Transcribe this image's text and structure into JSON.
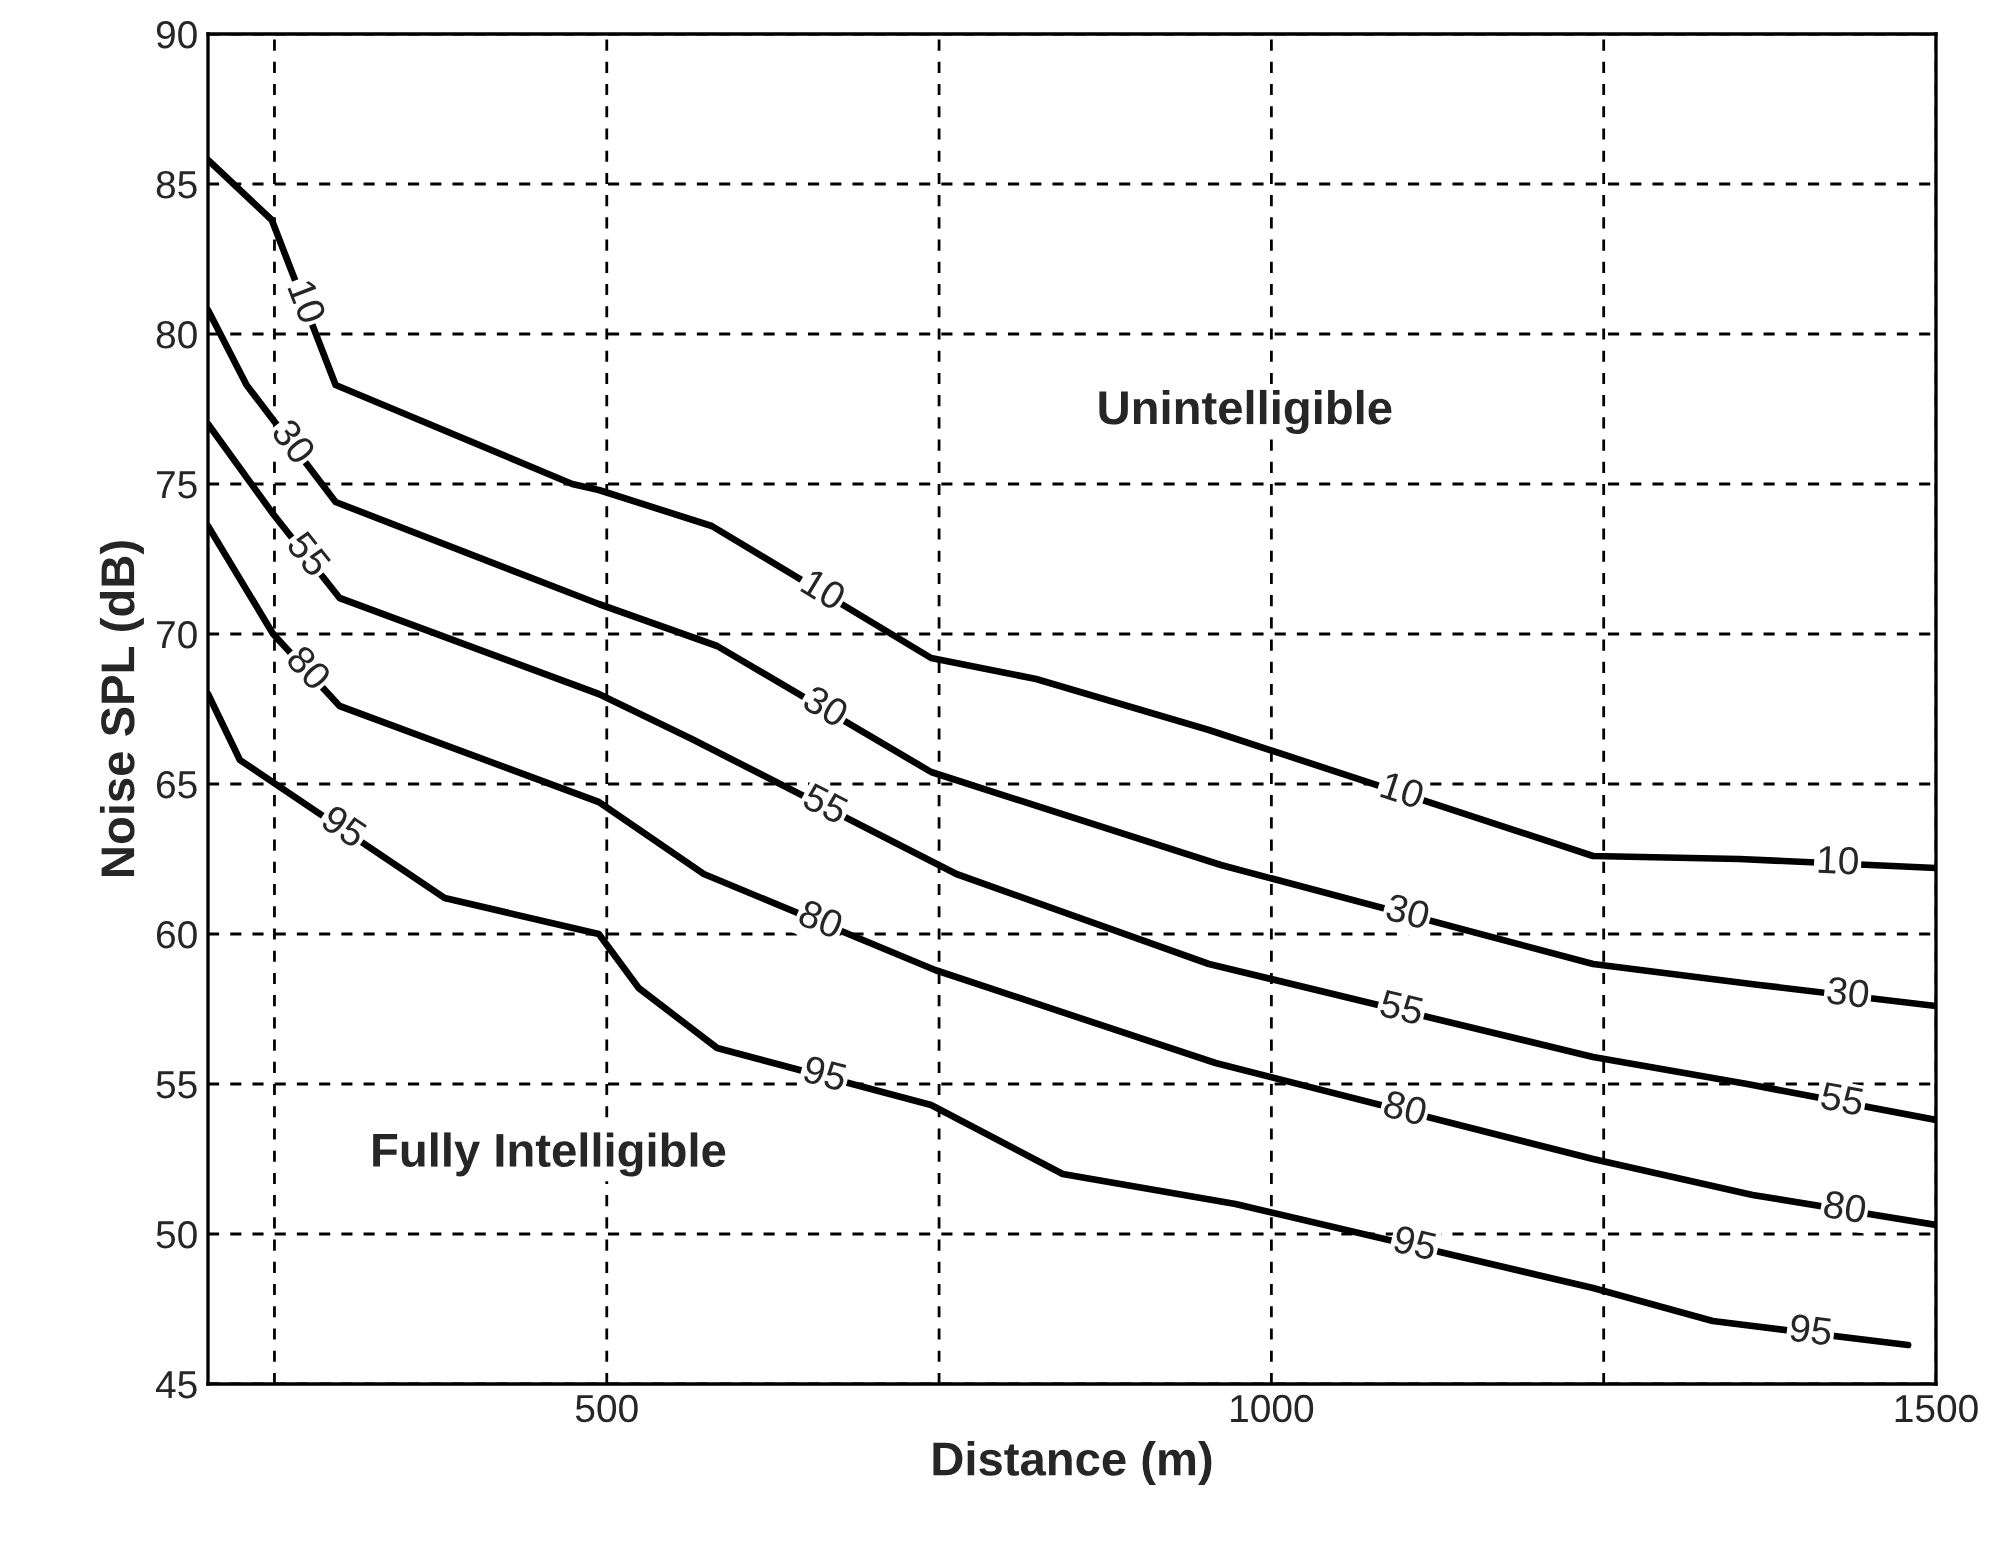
{
  "chart_data": {
    "type": "line",
    "xlabel": "Distance (m)",
    "ylabel": "Noise SPL (dB)",
    "xlim": [
      200,
      1500
    ],
    "ylim": [
      45,
      90
    ],
    "xticks": [
      {
        "value": 250,
        "label": null
      },
      500,
      {
        "value": 750,
        "label": null
      },
      1000,
      {
        "value": 1250,
        "label": null
      },
      1500
    ],
    "yticks": [
      45,
      50,
      55,
      60,
      65,
      70,
      75,
      80,
      85,
      90
    ],
    "grid": true,
    "legend": false,
    "marker": "none",
    "line_style": "solid",
    "annotations": [
      "Unintelligible",
      "Fully Intelligible"
    ],
    "series": [
      {
        "name": "10",
        "color": "#000000",
        "x": [
          200,
          248,
          296,
          474,
          494,
          579,
          744,
          823,
          953,
          1242,
          1352,
          1500
        ],
        "values": [
          85.8,
          83.8,
          78.3,
          75.0,
          74.8,
          73.6,
          69.2,
          68.5,
          66.8,
          62.6,
          62.5,
          62.2
        ]
      },
      {
        "name": "30",
        "color": "#000000",
        "x": [
          200,
          229,
          296,
          494,
          583,
          744,
          962,
          1242,
          1367,
          1500
        ],
        "values": [
          80.8,
          78.3,
          74.4,
          71.0,
          69.6,
          65.4,
          62.3,
          59.0,
          58.3,
          57.6
        ]
      },
      {
        "name": "55",
        "color": "#000000",
        "x": [
          200,
          249,
          299,
          494,
          564,
          763,
          953,
          1242,
          1358,
          1500
        ],
        "values": [
          77.0,
          74.0,
          71.2,
          68.0,
          66.5,
          62.0,
          59.0,
          55.9,
          55.0,
          53.8
        ]
      },
      {
        "name": "80",
        "color": "#000000",
        "x": [
          200,
          249,
          299,
          494,
          573,
          747,
          958,
          1242,
          1362,
          1500
        ],
        "values": [
          73.6,
          70.0,
          67.6,
          64.4,
          62.0,
          58.8,
          55.7,
          52.5,
          51.3,
          50.3
        ]
      },
      {
        "name": "95",
        "color": "#000000",
        "x": [
          200,
          224,
          378,
          494,
          524,
          583,
          744,
          843,
          973,
          1242,
          1332,
          1479
        ],
        "values": [
          68.0,
          65.8,
          61.2,
          60.0,
          58.2,
          56.2,
          54.3,
          52.0,
          51.0,
          48.2,
          47.1,
          46.3
        ]
      }
    ]
  }
}
